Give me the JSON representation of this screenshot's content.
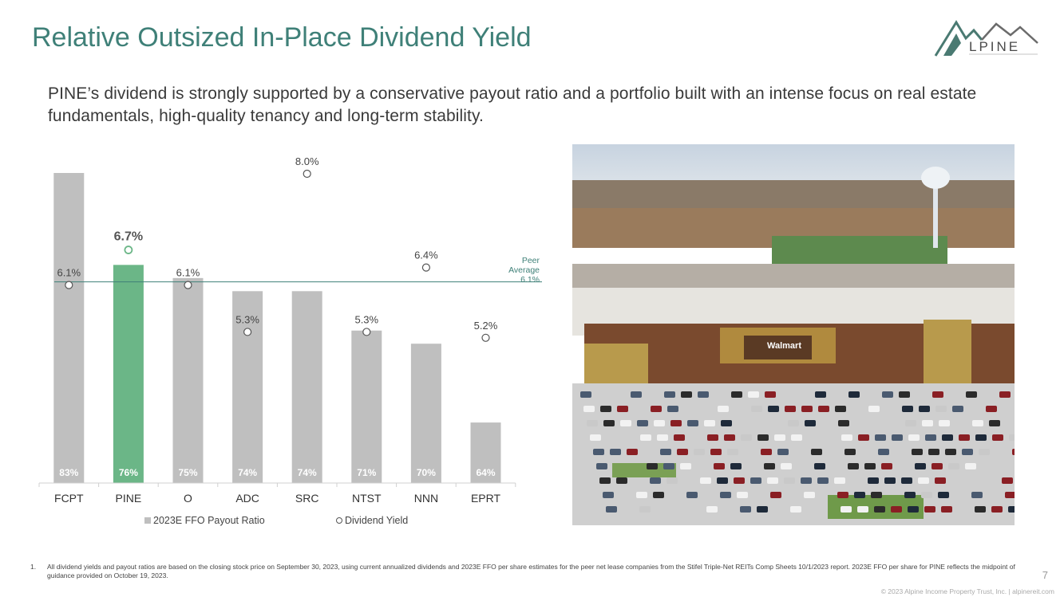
{
  "header": {
    "title": "Relative Outsized In-Place Dividend Yield",
    "logo_text": "LPINE"
  },
  "subtitle": "PINE’s dividend is strongly supported by a conservative payout ratio and a portfolio built with an intense focus on real estate fundamentals, high-quality tenancy and long-term stability.",
  "chart_data": {
    "type": "bar",
    "categories": [
      "FCPT",
      "PINE",
      "O",
      "ADC",
      "SRC",
      "NTST",
      "NNN",
      "EPRT"
    ],
    "series": [
      {
        "name": "2023E FFO Payout Ratio",
        "type": "bar",
        "values": [
          83,
          76,
          75,
          74,
          74,
          71,
          70,
          64
        ],
        "labels": [
          "83%",
          "76%",
          "75%",
          "74%",
          "74%",
          "71%",
          "70%",
          "64%"
        ]
      },
      {
        "name": "Dividend Yield",
        "type": "scatter",
        "values": [
          6.1,
          6.7,
          6.1,
          5.3,
          8.0,
          5.3,
          6.4,
          5.2
        ],
        "labels": [
          "6.1%",
          "6.7%",
          "6.1%",
          "5.3%",
          "8.0%",
          "5.3%",
          "6.4%",
          "5.2%"
        ]
      }
    ],
    "highlight_category": "PINE",
    "reference_line": {
      "value": 6.1,
      "label_lines": [
        "Peer",
        "Average",
        "6.1%"
      ]
    },
    "legend_position": "bottom",
    "grid": false,
    "colors": {
      "bar": "#bfbfbf",
      "highlight": "#6bb687",
      "reference_line": "#3f8078"
    }
  },
  "photo": {
    "sign_text": "Walmart"
  },
  "footnote": {
    "number": "1.",
    "text": "All dividend yields and payout ratios are based on the closing stock price on September 30, 2023, using current annualized dividends and 2023E FFO per share estimates for the peer net lease companies from the Stifel Triple-Net REITs Comp Sheets 10/1/2023 report. 2023E FFO per share for PINE reflects the midpoint of guidance provided on October 19, 2023."
  },
  "page_number": "7",
  "copyright": "© 2023 Alpine Income Property Trust, Inc.  |  alpinereit.com"
}
